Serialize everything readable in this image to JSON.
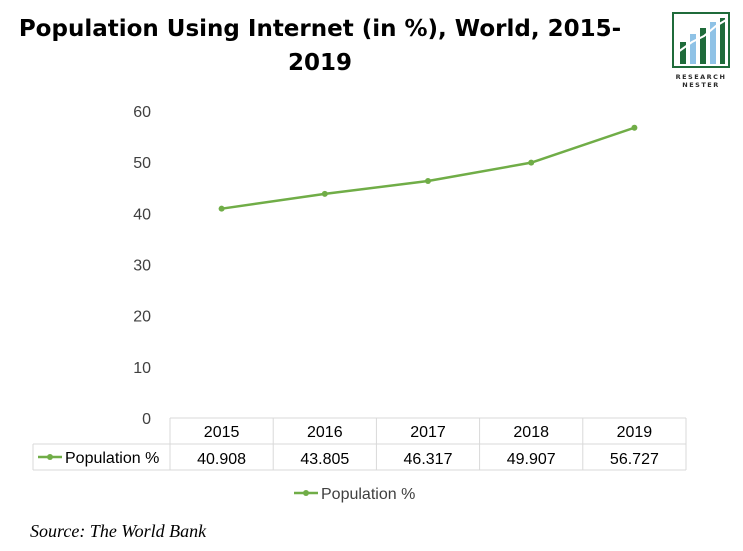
{
  "title_line1": "Population Using Internet (in %), World, 2015-",
  "title_line2": "2019",
  "logo": {
    "line1": "RESEARCH",
    "line2": "NESTER",
    "colors": {
      "dark": "#1f6b3a",
      "light": "#8fc2e6"
    }
  },
  "source": "Source: The World Bank",
  "colors": {
    "series": "#70ad47",
    "grid": "#d9d9d9",
    "axis_text": "#404040"
  },
  "chart_data": {
    "type": "line",
    "title": "Population Using Internet (in %), World, 2015-2019",
    "categories": [
      "2015",
      "2016",
      "2017",
      "2018",
      "2019"
    ],
    "series": [
      {
        "name": "Population %",
        "values": [
          40.908,
          43.805,
          46.317,
          49.907,
          56.727
        ],
        "labels": [
          "40.908",
          "43.805",
          "46.317",
          "49.907",
          "56.727"
        ]
      }
    ],
    "yticks": [
      "0",
      "10",
      "20",
      "30",
      "40",
      "50",
      "60"
    ],
    "ylim": [
      0,
      60
    ],
    "grid": false,
    "legend": "bottom",
    "data_table": true
  }
}
